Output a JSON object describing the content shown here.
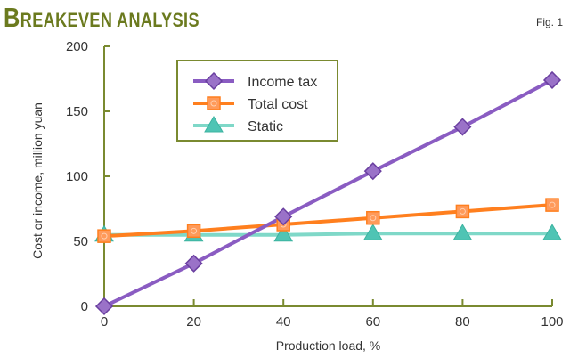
{
  "header": {
    "title_first": "B",
    "title_rest": "REAKEVEN ANALYSIS",
    "fig_label": "Fig. 1"
  },
  "colors": {
    "income_tax": "#8a5cc2",
    "total_cost": "#ff7f1e",
    "static": "#7fd8c8",
    "axis": "#7a8a30",
    "title": "#6b7a1e"
  },
  "chart_data": {
    "type": "line",
    "title": "Breakeven analysis",
    "subtitle": "Fig. 1",
    "xlabel": "Production load, %",
    "ylabel": "Cost or income, million yuan",
    "x": [
      0,
      20,
      40,
      60,
      80,
      100
    ],
    "xlim": [
      0,
      100
    ],
    "ylim": [
      0,
      200
    ],
    "xticks": [
      "0",
      "20",
      "40",
      "60",
      "80",
      "100"
    ],
    "yticks": [
      "0",
      "50",
      "100",
      "150",
      "200"
    ],
    "grid": false,
    "legend_position": "upper-left-inset",
    "series": [
      {
        "name": "Income tax",
        "marker": "diamond",
        "values": [
          0,
          33,
          69,
          104,
          138,
          174
        ]
      },
      {
        "name": "Total cost",
        "marker": "square",
        "values": [
          54,
          58,
          63,
          68,
          73,
          78
        ]
      },
      {
        "name": "Static",
        "marker": "triangle",
        "values": [
          55,
          55,
          55,
          56,
          56,
          56
        ]
      }
    ]
  }
}
